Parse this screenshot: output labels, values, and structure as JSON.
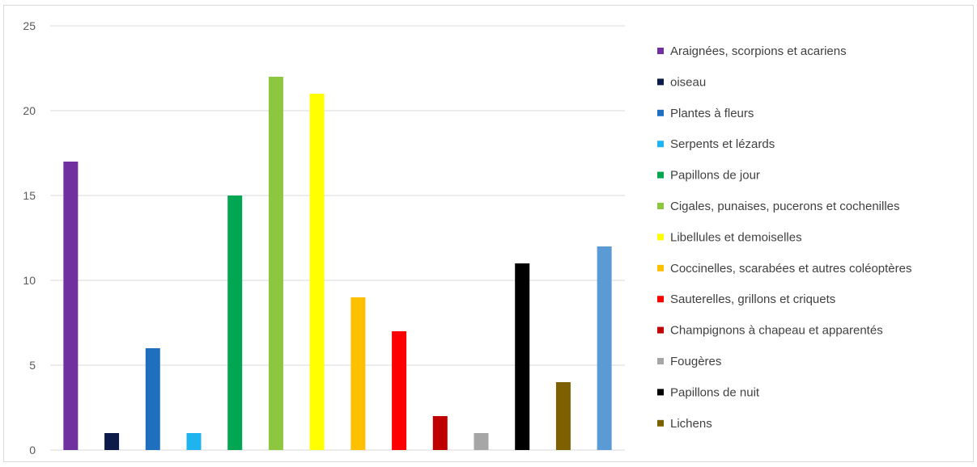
{
  "chart_data": {
    "type": "bar",
    "title": "",
    "xlabel": "",
    "ylabel": "",
    "ylim": [
      0,
      25
    ],
    "yticks": [
      0,
      5,
      10,
      15,
      20,
      25
    ],
    "grid": true,
    "legend_position": "right",
    "categories": [
      "Araignées, scorpions et acariens",
      "oiseau",
      "Plantes à fleurs",
      "Serpents et lézards",
      "Papillons de jour",
      "Cigales, punaises, pucerons et cochenilles",
      "Libellules et demoiselles",
      "Coccinelles, scarabées et autres coléoptères",
      "Sauterelles, grillons et criquets",
      "Champignons à chapeau et apparentés",
      "Fougères",
      "Papillons de nuit",
      "Lichens",
      ""
    ],
    "values": [
      17,
      1,
      6,
      1,
      15,
      22,
      21,
      9,
      7,
      2,
      1,
      11,
      4,
      12
    ],
    "colors": [
      "#7030a0",
      "#0d1b4b",
      "#1f6fbf",
      "#1fb4f0",
      "#00a651",
      "#8dc63f",
      "#ffff00",
      "#ffc000",
      "#ff0000",
      "#c00000",
      "#a6a6a6",
      "#000000",
      "#7f6000",
      "#5b9bd5"
    ],
    "legend_entries": [
      {
        "label": "Araignées, scorpions et acariens",
        "color": "#7030a0"
      },
      {
        "label": "oiseau",
        "color": "#0d1b4b"
      },
      {
        "label": "Plantes à fleurs",
        "color": "#1f6fbf"
      },
      {
        "label": "Serpents et lézards",
        "color": "#1fb4f0"
      },
      {
        "label": "Papillons de jour",
        "color": "#00a651"
      },
      {
        "label": "Cigales, punaises, pucerons et cochenilles",
        "color": "#8dc63f"
      },
      {
        "label": "Libellules et demoiselles",
        "color": "#ffff00"
      },
      {
        "label": "Coccinelles, scarabées et autres coléoptères",
        "color": "#ffc000"
      },
      {
        "label": "Sauterelles, grillons et criquets",
        "color": "#ff0000"
      },
      {
        "label": "Champignons à chapeau et apparentés",
        "color": "#c00000"
      },
      {
        "label": "Fougères",
        "color": "#a6a6a6"
      },
      {
        "label": "Papillons de nuit",
        "color": "#000000"
      },
      {
        "label": "Lichens",
        "color": "#7f6000"
      }
    ]
  }
}
